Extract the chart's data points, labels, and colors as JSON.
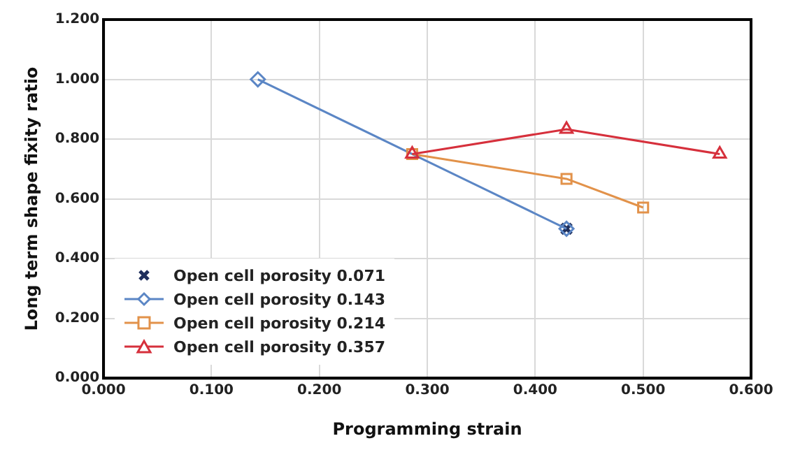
{
  "chart_data": {
    "type": "line",
    "xlabel": "Programming strain",
    "ylabel": "Long term shape fixity ratio",
    "xlim": [
      0,
      0.6
    ],
    "xticks": [
      {
        "value": 0,
        "label": "0.000"
      },
      {
        "value": 0.1,
        "label": "0.100"
      },
      {
        "value": 0.2,
        "label": "0.200"
      },
      {
        "value": 0.3,
        "label": "0.300"
      },
      {
        "value": 0.4,
        "label": "0.400"
      },
      {
        "value": 0.5,
        "label": "0.500"
      },
      {
        "value": 0.6,
        "label": "0.600"
      }
    ],
    "ylim": [
      0,
      1.2
    ],
    "yticks": [
      {
        "value": 0,
        "label": "0.000"
      },
      {
        "value": 0.2,
        "label": "0.200"
      },
      {
        "value": 0.4,
        "label": "0.400"
      },
      {
        "value": 0.6,
        "label": "0.600"
      },
      {
        "value": 0.8,
        "label": "0.800"
      },
      {
        "value": 1,
        "label": "1.000"
      },
      {
        "value": 1.2,
        "label": "1.200"
      }
    ],
    "grid": true,
    "legend": "bottom left",
    "series": [
      {
        "name": "Open cell porosity 0.071",
        "type": "scatter",
        "marker": "cross",
        "color": "#1f2f5c",
        "x": [
          0.429
        ],
        "values": [
          0.5
        ]
      },
      {
        "name": "Open cell porosity 0.143",
        "type": "line",
        "marker": "diamond",
        "color": "#5b86c5",
        "x": [
          0.143,
          0.429
        ],
        "values": [
          1.0,
          0.5
        ]
      },
      {
        "name": "Open cell porosity 0.214",
        "type": "line",
        "marker": "square",
        "color": "#e2924a",
        "x": [
          0.286,
          0.429,
          0.5
        ],
        "values": [
          0.75,
          0.667,
          0.571
        ]
      },
      {
        "name": "Open cell porosity 0.357",
        "type": "line",
        "marker": "triangle",
        "color": "#d6303c",
        "x": [
          0.286,
          0.429,
          0.571
        ],
        "values": [
          0.75,
          0.833,
          0.75
        ]
      }
    ]
  }
}
